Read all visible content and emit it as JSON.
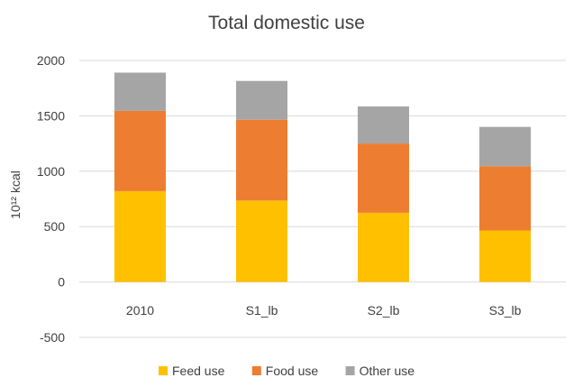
{
  "chart_data": {
    "type": "bar",
    "stacked": true,
    "title": "Total domestic use",
    "xlabel": "",
    "ylabel": "10¹² kcal",
    "categories": [
      "2010",
      "S1_lb",
      "S2_lb",
      "S3_lb"
    ],
    "series": [
      {
        "name": "Feed use",
        "color": "#ffc000",
        "values": [
          820,
          735,
          625,
          465
        ]
      },
      {
        "name": "Food use",
        "color": "#ed7d31",
        "values": [
          725,
          730,
          625,
          580
        ]
      },
      {
        "name": "Other use",
        "color": "#a5a5a5",
        "values": [
          345,
          350,
          335,
          355
        ]
      }
    ],
    "ylim": [
      -500,
      2000
    ],
    "yticks": [
      -500,
      0,
      500,
      1000,
      1500,
      2000
    ],
    "grid": true,
    "legend": "bottom"
  }
}
